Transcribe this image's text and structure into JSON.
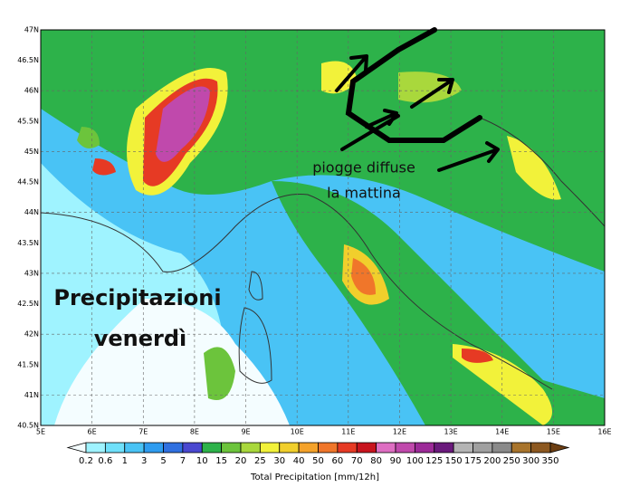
{
  "map": {
    "lat_labels": [
      "47N",
      "46.5N",
      "46N",
      "45.5N",
      "45N",
      "44.5N",
      "44N",
      "43.5N",
      "43N",
      "42.5N",
      "42N",
      "41.5N",
      "41N",
      "40.5N"
    ],
    "lon_labels": [
      "5E",
      "6E",
      "7E",
      "8E",
      "9E",
      "10E",
      "11E",
      "12E",
      "13E",
      "14E",
      "15E",
      "16E"
    ],
    "annotations": {
      "rain": [
        "piogge diffuse",
        "la mattina"
      ],
      "headline": [
        "Precipitazioni",
        "venerdì"
      ]
    }
  },
  "colorbar": {
    "title": "Total Precipitation [mm/12h]",
    "labels": [
      "0.2",
      "0.6",
      "1",
      "3",
      "5",
      "7",
      "10",
      "15",
      "20",
      "25",
      "30",
      "40",
      "50",
      "60",
      "70",
      "80",
      "90",
      "100",
      "125",
      "150",
      "175",
      "200",
      "250",
      "300",
      "350"
    ],
    "colors": [
      "#f4fdff",
      "#9ff3ff",
      "#6fe0fa",
      "#49c3f5",
      "#2e9cf0",
      "#3070e0",
      "#4a48d0",
      "#2db24a",
      "#6cc43c",
      "#a9d83c",
      "#f2f23a",
      "#f1cf2c",
      "#f4a22a",
      "#f0762a",
      "#e63a24",
      "#c8141e",
      "#de6ec2",
      "#c049ac",
      "#9c2a98",
      "#6a1a7c",
      "#b4b4b4",
      "#a0a0a0",
      "#8a8a8a",
      "#a8742c",
      "#8c5820",
      "#6c3e12"
    ]
  }
}
